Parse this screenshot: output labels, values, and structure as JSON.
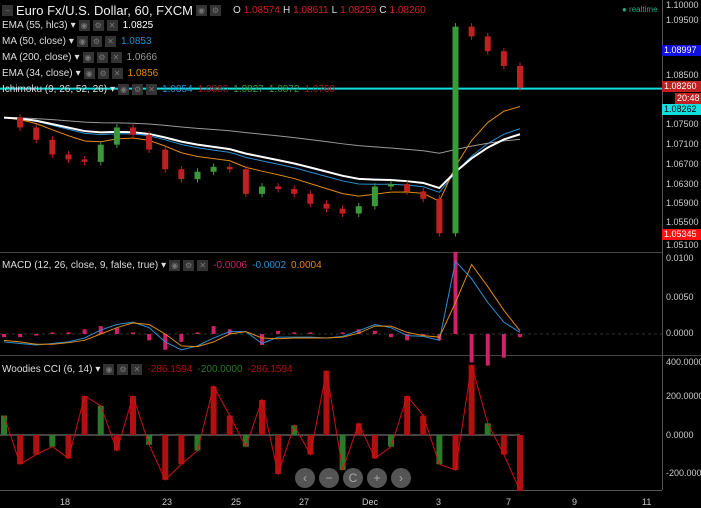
{
  "header": {
    "symbol": "Euro Fx/U.S. Dollar, 60, FXCM",
    "o_label": "O",
    "o": "1.08574",
    "h_label": "H",
    "h": "1.08611",
    "l_label": "L",
    "l": "1.08259",
    "c_label": "C",
    "c": "1.08260",
    "status": "realtime"
  },
  "indicators": [
    {
      "label": "EMA (55, hlc3)",
      "values": [
        "1.0825"
      ],
      "colors": [
        "#ffffff"
      ]
    },
    {
      "label": "MA (50, close)",
      "values": [
        "1.0853"
      ],
      "colors": [
        "#2a8fd0"
      ]
    },
    {
      "label": "MA (200, close)",
      "values": [
        "1.0666"
      ],
      "colors": [
        "#999999"
      ]
    },
    {
      "label": "EMA (34, close)",
      "values": [
        "1.0856"
      ],
      "colors": [
        "#e08a10"
      ]
    },
    {
      "label": "Ichimoku (9, 26, 52, 26)",
      "values": [
        "1.0854",
        "1.0880",
        "1.0827",
        "1.0872",
        "1.0760"
      ],
      "colors": [
        "#2a8fd0",
        "#a02020",
        "#3a9a3a",
        "#3a9a3a",
        "#a02020"
      ]
    }
  ],
  "macd_legend": {
    "label": "MACD (12, 26, close, 9, false, true)",
    "values": [
      "-0.0006",
      "-0.0002",
      "0.0004"
    ],
    "colors": [
      "#d0206a",
      "#2a8fd0",
      "#e08a10"
    ]
  },
  "cci_legend": {
    "label": "Woodies CCI (6, 14)",
    "values": [
      "-286.1594",
      "-200.0000",
      "-286.1594"
    ],
    "colors": [
      "#b01010",
      "#2a7a2a",
      "#b01010"
    ]
  },
  "price_axis": [
    "1.10000",
    "1.09500",
    "1.08500",
    "1.07500",
    "1.07100",
    "1.06700",
    "1.06300",
    "1.05900",
    "1.05500",
    "1.05100"
  ],
  "price_tags": [
    {
      "text": "1.08997",
      "bg": "#1010e0",
      "color": "#fff"
    },
    {
      "text": "1.08260",
      "bg": "#c02020",
      "color": "#fff"
    },
    {
      "text": "20:48",
      "bg": "#c02020",
      "color": "#fff"
    },
    {
      "text": "1.08262",
      "bg": "#10e0e0",
      "color": "#000"
    },
    {
      "text": "1.05345",
      "bg": "#ff1010",
      "color": "#fff"
    }
  ],
  "macd_axis": [
    "0.0100",
    "0.0050",
    "0.0000"
  ],
  "cci_axis": [
    "400.0000",
    "200.0000",
    "0.0000",
    "-200.0000"
  ],
  "x_axis": [
    "18",
    "23",
    "25",
    "27",
    "Dec",
    "3",
    "7",
    "9",
    "11"
  ],
  "nav_buttons": [
    "‹",
    "−",
    "C",
    "+",
    "›"
  ],
  "chart_data": {
    "type": "candlestick",
    "price_range": [
      1.051,
      1.1
    ],
    "current_price": 1.0826,
    "closes": [
      1.0765,
      1.0745,
      1.072,
      1.069,
      1.068,
      1.0675,
      1.071,
      1.0745,
      1.073,
      1.07,
      1.066,
      1.064,
      1.0655,
      1.0665,
      1.066,
      1.061,
      1.0625,
      1.062,
      1.061,
      1.059,
      1.058,
      1.057,
      1.0585,
      1.0625,
      1.063,
      1.0615,
      1.06,
      1.053,
      1.095,
      1.093,
      1.09,
      1.087,
      1.0826
    ],
    "macd": [
      -0.001,
      -0.0012,
      -0.0014,
      -0.0012,
      -0.001,
      -0.0005,
      0.0005,
      0.0012,
      0.0015,
      0.0008,
      -0.001,
      -0.002,
      -0.0015,
      -0.0005,
      0.0003,
      0.0003,
      -0.0012,
      -0.0004,
      -0.0004,
      -0.0004,
      -0.0005,
      -0.0003,
      0.0004,
      0.0012,
      0.0008,
      -0.0002,
      -0.0003,
      -0.0008,
      0.0092,
      0.007,
      0.004,
      0.0015,
      0.0002
    ],
    "signal": [
      -0.0008,
      -0.001,
      -0.0013,
      -0.0013,
      -0.0011,
      -0.0008,
      0.0,
      0.0008,
      0.0014,
      0.0012,
      0.0,
      -0.0015,
      -0.0016,
      -0.001,
      0.0,
      0.0003,
      -0.0005,
      -0.0006,
      -0.0005,
      -0.0005,
      -0.0005,
      -0.0004,
      0.0001,
      0.001,
      0.001,
      0.0002,
      -0.0002,
      -0.0004,
      0.004,
      0.0088,
      0.006,
      0.003,
      0.0004
    ],
    "cci": [
      100,
      -150,
      -100,
      -60,
      -120,
      200,
      150,
      -80,
      200,
      -50,
      -230,
      -150,
      -80,
      250,
      100,
      -60,
      180,
      -200,
      50,
      -100,
      330,
      -180,
      60,
      -120,
      -60,
      200,
      100,
      -150,
      -180,
      360,
      60,
      -100,
      -286
    ]
  }
}
